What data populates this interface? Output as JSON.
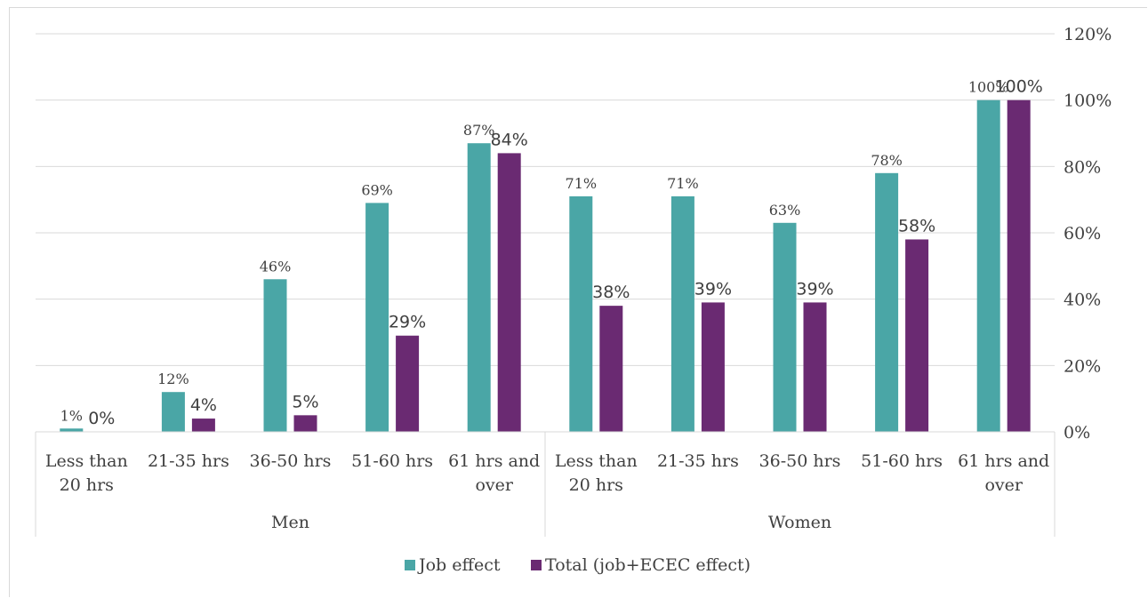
{
  "chart_data": {
    "type": "bar",
    "groups": [
      {
        "label": "Men",
        "categories": [
          "Less than 20 hrs",
          "21-35 hrs",
          "36-50 hrs",
          "51-60 hrs",
          "61 hrs and over"
        ]
      },
      {
        "label": "Women",
        "categories": [
          "Less than 20 hrs",
          "21-35 hrs",
          "36-50 hrs",
          "51-60 hrs",
          "61 hrs and over"
        ]
      }
    ],
    "category_lines": [
      [
        "Less than",
        "20 hrs"
      ],
      [
        "21-35 hrs"
      ],
      [
        "36-50 hrs"
      ],
      [
        "51-60 hrs"
      ],
      [
        "61 hrs and",
        "over"
      ],
      [
        "Less than",
        "20 hrs"
      ],
      [
        "21-35 hrs"
      ],
      [
        "36-50 hrs"
      ],
      [
        "51-60 hrs"
      ],
      [
        "61 hrs and",
        "over"
      ]
    ],
    "series": [
      {
        "name": "Job effect",
        "color": "#4aa6a6",
        "values": [
          1,
          12,
          46,
          69,
          87,
          71,
          71,
          63,
          78,
          100
        ],
        "labels": [
          "1%",
          "12%",
          "46%",
          "69%",
          "87%",
          "71%",
          "71%",
          "63%",
          "78%",
          "100%"
        ]
      },
      {
        "name": "Total (job+ECEC effect)",
        "color": "#6a2a72",
        "values": [
          0,
          4,
          5,
          29,
          84,
          38,
          39,
          39,
          58,
          100
        ],
        "labels": [
          "0%",
          "4%",
          "5%",
          "29%",
          "84%",
          "38%",
          "39%",
          "39%",
          "58%",
          "100%"
        ]
      }
    ],
    "y_axis": {
      "position": "right",
      "ylim": [
        0,
        120
      ],
      "ticks": [
        0,
        20,
        40,
        60,
        80,
        100,
        120
      ],
      "tick_labels": [
        "0%",
        "20%",
        "40%",
        "60%",
        "80%",
        "100%",
        "120%"
      ]
    },
    "grid": true,
    "legend_position": "bottom"
  }
}
